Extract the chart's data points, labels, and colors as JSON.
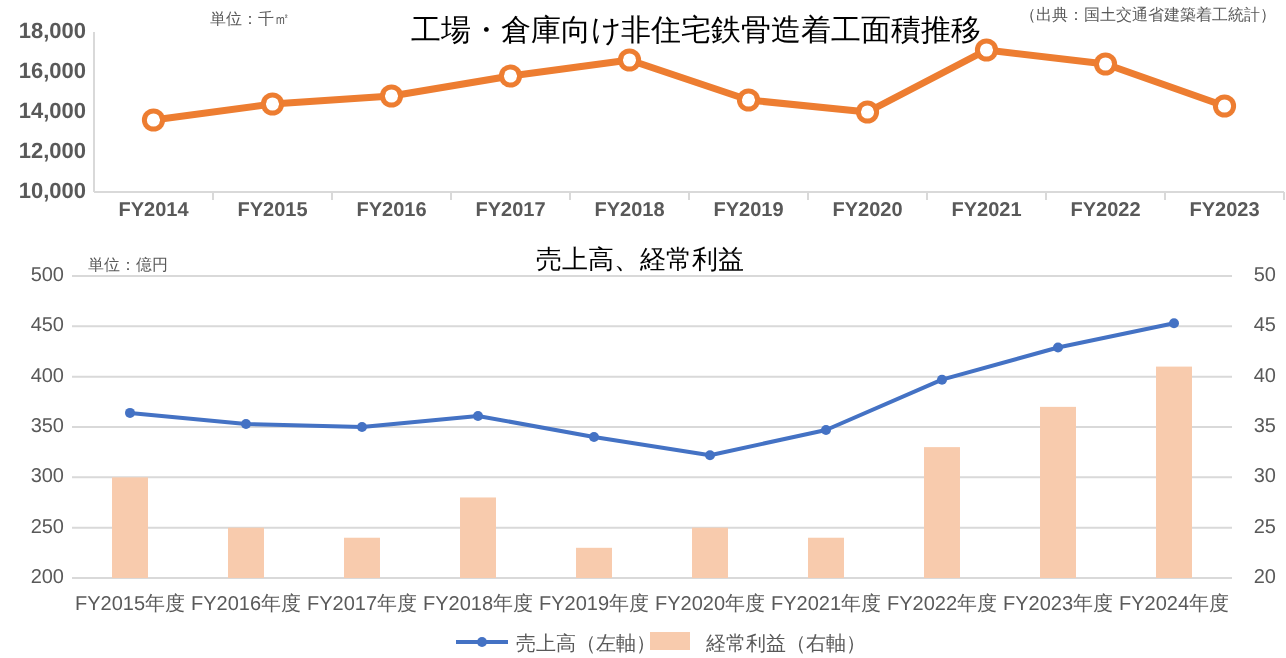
{
  "chart_data": [
    {
      "type": "line",
      "title": "工場・倉庫向け非住宅鉄骨造着工面積推移",
      "annotations": [
        "単位：千㎡",
        "（出典：国土交通省建築着工統計）"
      ],
      "categories": [
        "FY2014",
        "FY2015",
        "FY2016",
        "FY2017",
        "FY2018",
        "FY2019",
        "FY2020",
        "FY2021",
        "FY2022",
        "FY2023"
      ],
      "series": [
        {
          "color": "#ed7d31",
          "values": [
            13600,
            14400,
            14800,
            15800,
            16600,
            14600,
            14000,
            17100,
            16400,
            14300
          ]
        }
      ],
      "ylim": [
        10000,
        18000
      ],
      "yticks": [
        {
          "value": 10000,
          "label": "10,000"
        },
        {
          "value": 12000,
          "label": "12,000"
        },
        {
          "value": 14000,
          "label": "14,000"
        },
        {
          "value": 16000,
          "label": "16,000"
        },
        {
          "value": 18000,
          "label": "18,000"
        }
      ],
      "marker": "circle",
      "legend": false
    },
    {
      "type": "bar",
      "title": "売上高、経常利益",
      "annotations": [
        "単位：億円"
      ],
      "categories": [
        "FY2015年度",
        "FY2016年度",
        "FY2017年度",
        "FY2018年度",
        "FY2019年度",
        "FY2020年度",
        "FY2021年度",
        "FY2022年度",
        "FY2023年度",
        "FY2024年度"
      ],
      "series": [
        {
          "name": "売上高（左軸）",
          "type": "line",
          "color": "#4472c4",
          "values": [
            364,
            353,
            350,
            361,
            340,
            322,
            347,
            397,
            429,
            453
          ]
        },
        {
          "name": "経常利益（右軸）",
          "type": "bar",
          "axis": "y2",
          "color": "#f8cbad",
          "values": [
            30,
            25,
            24,
            28,
            23,
            25,
            24,
            33,
            37,
            41
          ]
        }
      ],
      "ylim": [
        200,
        500
      ],
      "yticks": [
        200,
        250,
        300,
        350,
        400,
        450,
        500
      ],
      "y2lim": [
        20,
        50
      ],
      "y2ticks": [
        20,
        25,
        30,
        35,
        40,
        45,
        50
      ],
      "grid": "y",
      "legend": "bottom",
      "marker": "circle"
    }
  ]
}
